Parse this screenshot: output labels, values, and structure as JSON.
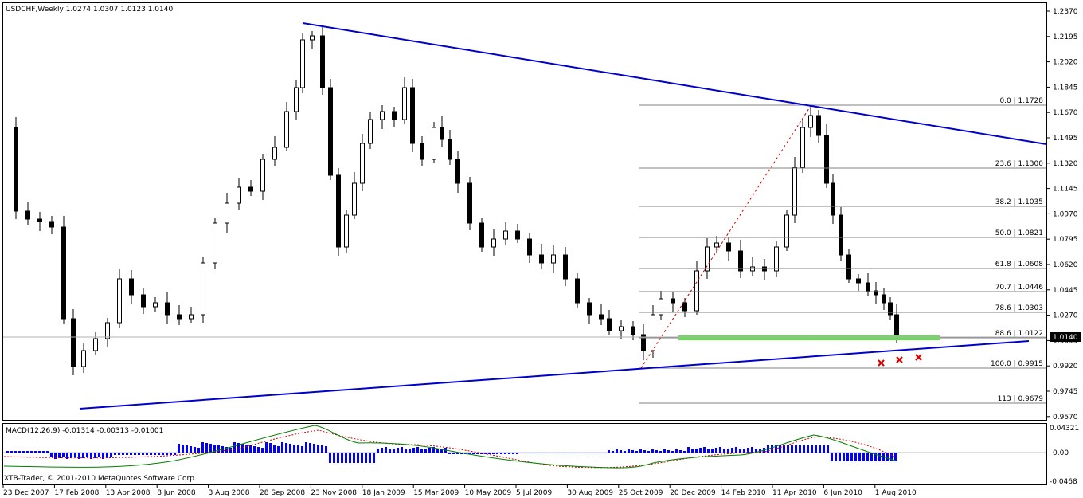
{
  "header": {
    "symbol_line": "USDCHF,Weekly  1.0274 1.0307 1.0123 1.0140"
  },
  "price_axis": {
    "labels": [
      "1.2370",
      "1.2195",
      "1.2020",
      "1.1845",
      "1.1670",
      "1.1495",
      "1.1320",
      "1.1145",
      "1.0970",
      "1.0795",
      "1.0620",
      "1.0445",
      "1.0270",
      "1.0095",
      "0.9920",
      "0.9745",
      "0.9570"
    ],
    "current_price": "1.0140"
  },
  "fibonacci": {
    "levels": [
      {
        "label": "0.0 | 1.1728"
      },
      {
        "label": "23.6 | 1.1300"
      },
      {
        "label": "38.2 | 1.1035"
      },
      {
        "label": "50.0 | 1.0821"
      },
      {
        "label": "61.8 | 1.0608"
      },
      {
        "label": "70.7 | 1.0446"
      },
      {
        "label": "78.6 | 1.0303"
      },
      {
        "label": "88.6 | 1.0122"
      },
      {
        "label": "100.0 | 0.9915"
      },
      {
        "label": "113 | 0.9679"
      }
    ]
  },
  "macd": {
    "label": "MACD(12,26,9) -0.01314 -0.00313 -0.01001",
    "axis_labels": [
      "0.04321",
      "0.00",
      "-0.0468"
    ]
  },
  "time_axis": {
    "labels": [
      "23 Dec 2007",
      "17 Feb 2008",
      "13 Apr 2008",
      "8 Jun 2008",
      "3 Aug 2008",
      "28 Sep 2008",
      "23 Nov 2008",
      "18 Jan 2009",
      "15 Mar 2009",
      "10 May 2009",
      "5 Jul 2009",
      "30 Aug 2009",
      "25 Oct 2009",
      "20 Dec 2009",
      "14 Feb 2010",
      "11 Apr 2010",
      "6 Jun 2010",
      "1 Aug 2010"
    ]
  },
  "footer": {
    "copyright": "XTB-Trader, © 2001-2010 MetaQuotes Software Corp."
  },
  "colors": {
    "trendline": "#0000cc",
    "support_zone": "#66dd55",
    "marker": "#dd0000",
    "fib_line": "#808080",
    "signal_line": "#cc0000",
    "macd_line": "#008000",
    "histogram": "#0000ff"
  }
}
